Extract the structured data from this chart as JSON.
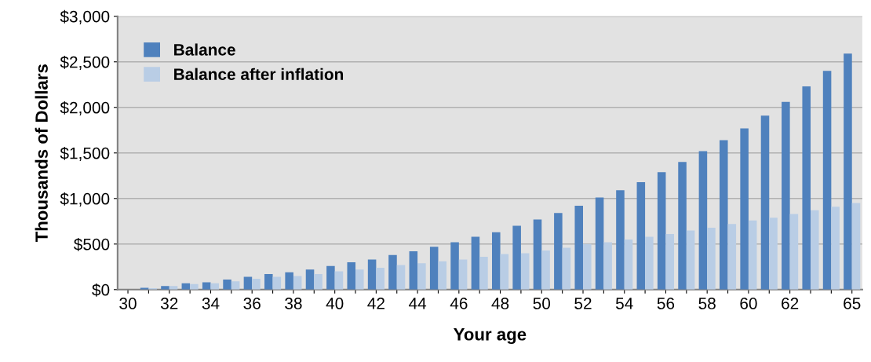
{
  "chart_data": {
    "type": "bar",
    "xlabel": "Your age",
    "ylabel": "Thousands of Dollars",
    "categories": [
      "30",
      null,
      "32",
      null,
      "34",
      null,
      "36",
      null,
      "38",
      null,
      "40",
      null,
      "42",
      null,
      "44",
      null,
      "46",
      null,
      "48",
      null,
      "50",
      null,
      "52",
      null,
      "54",
      null,
      "56",
      null,
      "58",
      null,
      "60",
      null,
      "62",
      null,
      null,
      "65"
    ],
    "series": [
      {
        "name": "Balance",
        "color": "#4f81bd",
        "values": [
          0,
          20,
          40,
          70,
          80,
          110,
          140,
          170,
          190,
          220,
          260,
          300,
          330,
          380,
          420,
          470,
          520,
          580,
          630,
          700,
          770,
          840,
          920,
          1010,
          1090,
          1180,
          1290,
          1400,
          1520,
          1640,
          1770,
          1910,
          2060,
          2230,
          2400,
          2590
        ]
      },
      {
        "name": "Balance after inflation",
        "color": "#b9cde5",
        "values": [
          0,
          15,
          40,
          60,
          70,
          90,
          120,
          140,
          150,
          170,
          200,
          220,
          240,
          270,
          290,
          310,
          330,
          360,
          390,
          400,
          430,
          460,
          500,
          520,
          550,
          580,
          610,
          650,
          680,
          720,
          760,
          790,
          830,
          870,
          910,
          950
        ]
      }
    ],
    "ylim": [
      0,
      3000
    ],
    "yticks": [
      {
        "value": 0,
        "label": "$0"
      },
      {
        "value": 500,
        "label": "$500"
      },
      {
        "value": 1000,
        "label": "$1,000"
      },
      {
        "value": 1500,
        "label": "$1,500"
      },
      {
        "value": 2000,
        "label": "$2,000"
      },
      {
        "value": 2500,
        "label": "$2,500"
      },
      {
        "value": 3000,
        "label": "$3,000"
      }
    ],
    "grid": "y",
    "legend": "top left"
  }
}
